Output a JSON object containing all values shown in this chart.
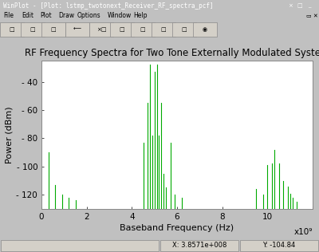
{
  "title": "RF Frequency Spectra for Two Tone Externally Modulated System",
  "xlabel": "Baseband Frequency (Hz)",
  "ylabel": "Power (dBm)",
  "xlim": [
    0,
    12000000000.0
  ],
  "ylim": [
    -130,
    -25
  ],
  "yticks": [
    -40,
    -60,
    -80,
    -100,
    -120
  ],
  "xticks": [
    0,
    2000000000.0,
    4000000000.0,
    6000000000.0,
    8000000000.0,
    10000000000.0,
    12000000000.0
  ],
  "xtick_labels": [
    "0",
    "2",
    "4",
    "6",
    "8",
    "10",
    ""
  ],
  "xscale_label": "x10⁹",
  "line_color": "#00aa00",
  "win_titlebar_color": "#000080",
  "win_titlebar_text": "WinPlot - [Plot: lstmp_twotonext_Receiver_RF_spectra_pcf]",
  "win_titlebar_text_color": "#ffffff",
  "win_bg_color": "#c0c0c0",
  "win_menubar_color": "#c0c0c0",
  "win_menu_items": [
    "File",
    "Edit",
    "Plot",
    "Draw",
    "Options",
    "Window",
    "Help"
  ],
  "win_statusbar_text_left": "",
  "win_statusbar_text_mid": "X: 3.8571e+008",
  "win_statusbar_text_right": "Y: -104.84",
  "plot_bg": "#ffffff",
  "plot_border_color": "#888888",
  "title_fontsize": 8.5,
  "label_fontsize": 8,
  "tick_fontsize": 7.5,
  "spikes": [
    [
      300000000.0,
      -90
    ],
    [
      600000000.0,
      -113
    ],
    [
      900000000.0,
      -120
    ],
    [
      1200000000.0,
      -122
    ],
    [
      1500000000.0,
      -124
    ],
    [
      4500000000.0,
      -83
    ],
    [
      4700000000.0,
      -55
    ],
    [
      4800000000.0,
      -28
    ],
    [
      4900000000.0,
      -78
    ],
    [
      5000000000.0,
      -33
    ],
    [
      5100000000.0,
      -28
    ],
    [
      5200000000.0,
      -78
    ],
    [
      5300000000.0,
      -55
    ],
    [
      5400000000.0,
      -105
    ],
    [
      5500000000.0,
      -115
    ],
    [
      5700000000.0,
      -83
    ],
    [
      5900000000.0,
      -120
    ],
    [
      6200000000.0,
      -122
    ],
    [
      9500000000.0,
      -116
    ],
    [
      9800000000.0,
      -120
    ],
    [
      10000000000.0,
      -99
    ],
    [
      10200000000.0,
      -98
    ],
    [
      10300000000.0,
      -88
    ],
    [
      10500000000.0,
      -98
    ],
    [
      10700000000.0,
      -110
    ],
    [
      10900000000.0,
      -114
    ],
    [
      11000000000.0,
      -119
    ],
    [
      11100000000.0,
      -122
    ],
    [
      11300000000.0,
      -125
    ]
  ]
}
